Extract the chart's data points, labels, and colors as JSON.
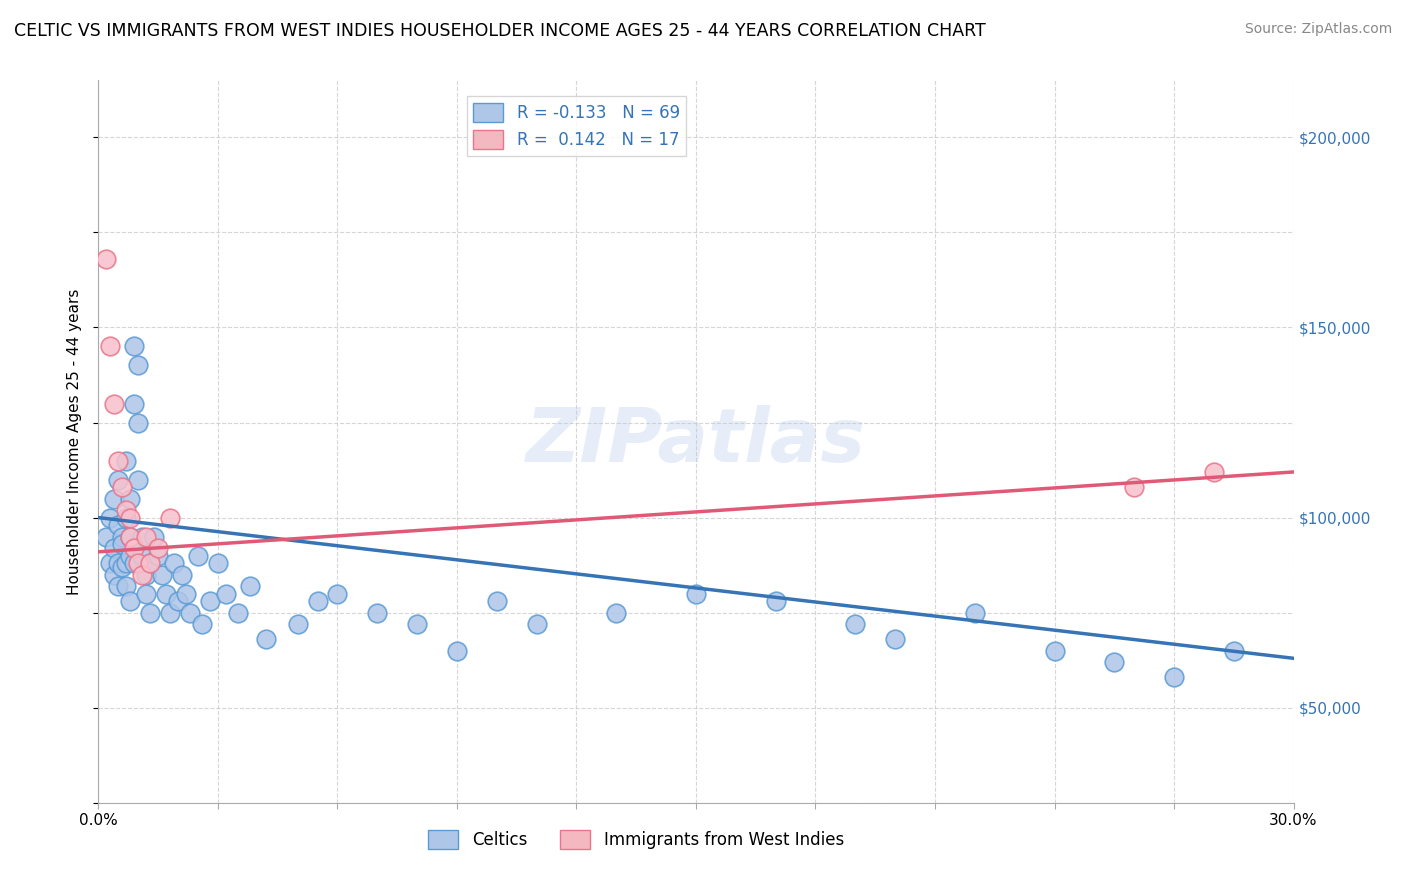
{
  "title": "CELTIC VS IMMIGRANTS FROM WEST INDIES HOUSEHOLDER INCOME AGES 25 - 44 YEARS CORRELATION CHART",
  "source": "Source: ZipAtlas.com",
  "ylabel": "Householder Income Ages 25 - 44 years",
  "xlim": [
    0.0,
    0.3
  ],
  "ylim": [
    25000,
    215000
  ],
  "xticks": [
    0.0,
    0.03,
    0.06,
    0.09,
    0.12,
    0.15,
    0.18,
    0.21,
    0.24,
    0.27,
    0.3
  ],
  "xticklabels": [
    "0.0%",
    "",
    "",
    "",
    "",
    "",
    "",
    "",
    "",
    "",
    "30.0%"
  ],
  "ytick_positions": [
    50000,
    100000,
    150000,
    200000
  ],
  "ytick_labels": [
    "$50,000",
    "$100,000",
    "$150,000",
    "$200,000"
  ],
  "legend_entries": [
    {
      "label": "R = -0.133   N = 69",
      "color": "#aec6e8"
    },
    {
      "label": "R =  0.142   N = 17",
      "color": "#f4b8c1"
    }
  ],
  "bottom_legend": [
    "Celtics",
    "Immigrants from West Indies"
  ],
  "bottom_legend_colors": [
    "#aec6e8",
    "#f4b8c1"
  ],
  "watermark": "ZIPatlas",
  "blue_scatter_x": [
    0.002,
    0.003,
    0.003,
    0.004,
    0.004,
    0.004,
    0.005,
    0.005,
    0.005,
    0.005,
    0.006,
    0.006,
    0.006,
    0.007,
    0.007,
    0.007,
    0.007,
    0.008,
    0.008,
    0.008,
    0.008,
    0.009,
    0.009,
    0.009,
    0.01,
    0.01,
    0.01,
    0.011,
    0.011,
    0.012,
    0.012,
    0.013,
    0.013,
    0.014,
    0.015,
    0.016,
    0.017,
    0.018,
    0.019,
    0.02,
    0.021,
    0.022,
    0.023,
    0.025,
    0.026,
    0.028,
    0.03,
    0.032,
    0.035,
    0.038,
    0.042,
    0.05,
    0.055,
    0.06,
    0.07,
    0.08,
    0.09,
    0.1,
    0.11,
    0.13,
    0.15,
    0.17,
    0.19,
    0.2,
    0.22,
    0.24,
    0.255,
    0.27,
    0.285
  ],
  "blue_scatter_y": [
    95000,
    88000,
    100000,
    85000,
    105000,
    92000,
    98000,
    82000,
    110000,
    88000,
    95000,
    87000,
    93000,
    88000,
    100000,
    82000,
    115000,
    105000,
    90000,
    78000,
    95000,
    88000,
    130000,
    145000,
    140000,
    125000,
    110000,
    95000,
    90000,
    85000,
    80000,
    88000,
    75000,
    95000,
    90000,
    85000,
    80000,
    75000,
    88000,
    78000,
    85000,
    80000,
    75000,
    90000,
    72000,
    78000,
    88000,
    80000,
    75000,
    82000,
    68000,
    72000,
    78000,
    80000,
    75000,
    72000,
    65000,
    78000,
    72000,
    75000,
    80000,
    78000,
    72000,
    68000,
    75000,
    65000,
    62000,
    58000,
    65000
  ],
  "pink_scatter_x": [
    0.002,
    0.003,
    0.004,
    0.005,
    0.006,
    0.007,
    0.008,
    0.008,
    0.009,
    0.01,
    0.011,
    0.012,
    0.013,
    0.015,
    0.018,
    0.26,
    0.28
  ],
  "pink_scatter_y": [
    168000,
    145000,
    130000,
    115000,
    108000,
    102000,
    100000,
    95000,
    92000,
    88000,
    85000,
    95000,
    88000,
    92000,
    100000,
    108000,
    112000
  ],
  "blue_line_x": [
    0.0,
    0.3
  ],
  "blue_line_y": [
    100000,
    63000
  ],
  "pink_line_x": [
    0.0,
    0.3
  ],
  "pink_line_y": [
    91000,
    112000
  ],
  "title_fontsize": 12.5,
  "source_fontsize": 10,
  "label_fontsize": 11,
  "tick_fontsize": 11,
  "legend_fontsize": 12
}
